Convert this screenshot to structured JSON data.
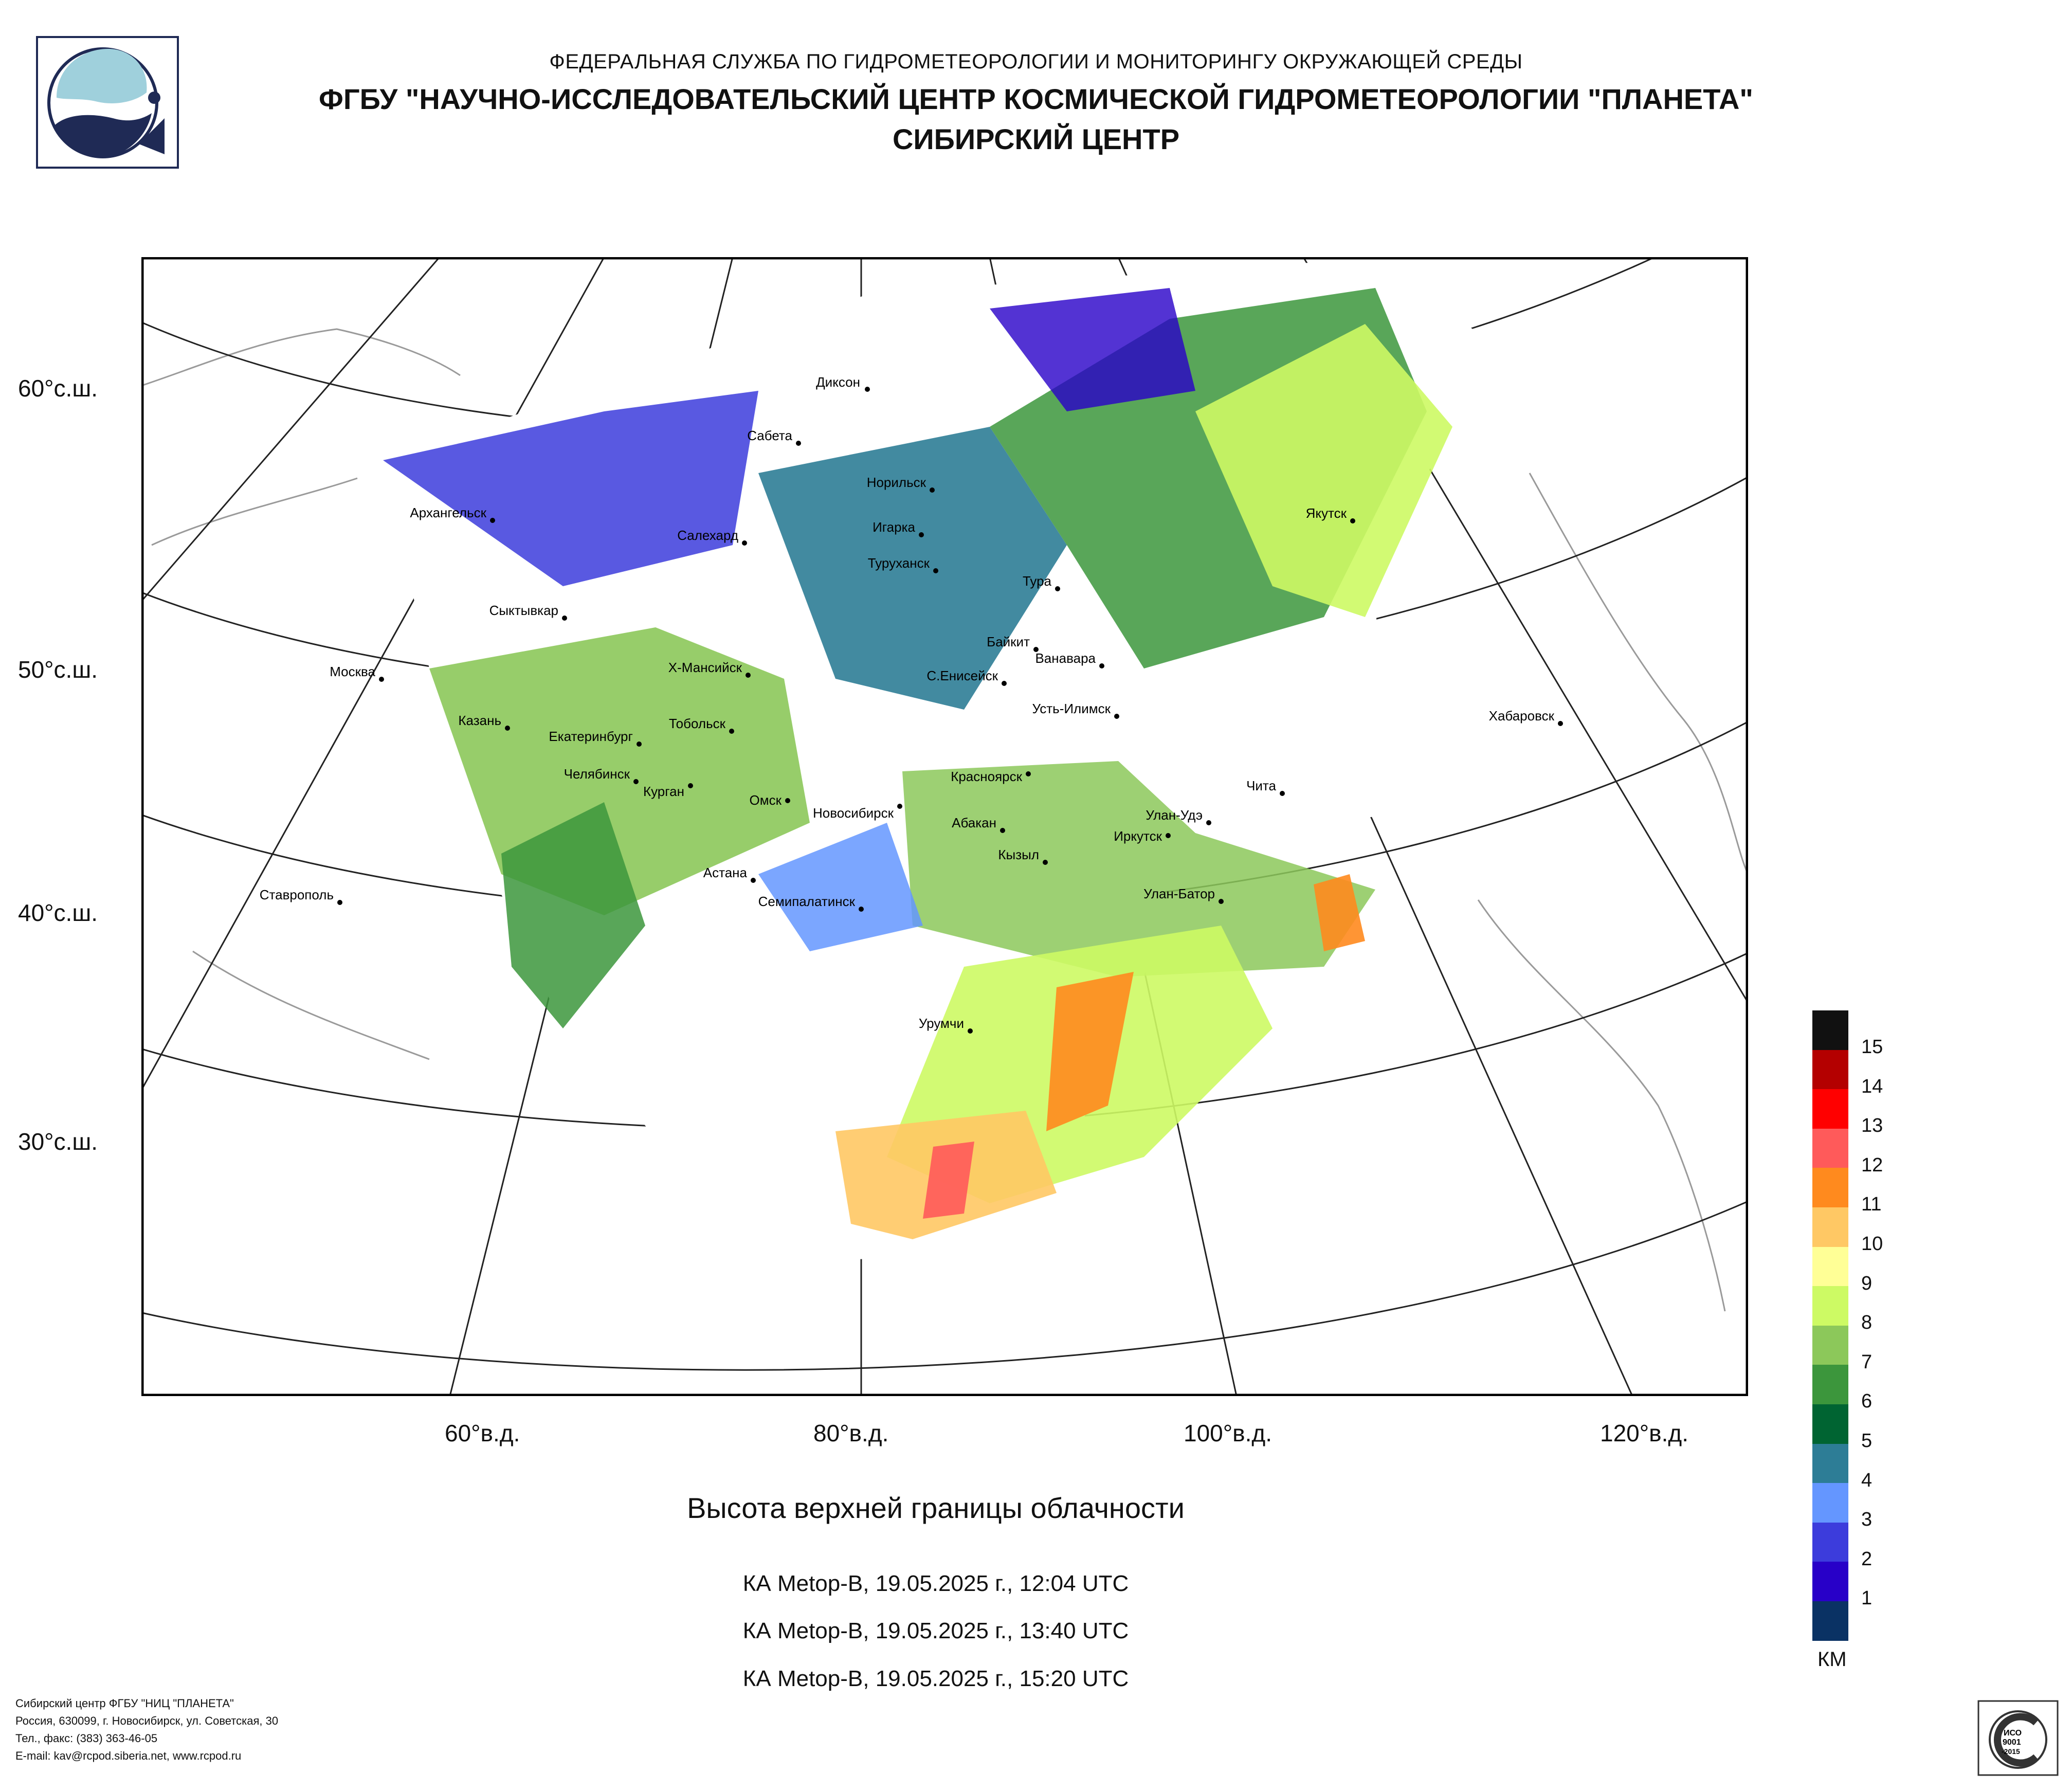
{
  "header": {
    "agency": "ФЕДЕРАЛЬНАЯ СЛУЖБА ПО ГИДРОМЕТЕОРОЛОГИИ И МОНИТОРИНГУ ОКРУЖАЮЩЕЙ СРЕДЫ",
    "institute": "ФГБУ \"НАУЧНО-ИССЛЕДОВАТЕЛЬСКИЙ ЦЕНТР КОСМИЧЕСКОЙ ГИДРОМЕТЕОРОЛОГИИ \"ПЛАНЕТА\"",
    "center": "СИБИРСКИЙ ЦЕНТР"
  },
  "map": {
    "lat_labels": [
      "60°с.ш.",
      "50°с.ш.",
      "40°с.ш.",
      "30°с.ш."
    ],
    "lon_labels": [
      "60°в.д.",
      "80°в.д.",
      "100°в.д.",
      "120°в.д."
    ],
    "cities": [
      "Диксон",
      "Сабета",
      "Норильск",
      "Игарка",
      "Туруханск",
      "Салехард",
      "Архангельск",
      "Сыктывкар",
      "Тура",
      "Якутск",
      "Байкит",
      "Ванавара",
      "Москва",
      "Х-Мансийск",
      "С.Енисейск",
      "Усть-Илимск",
      "Хабаровск",
      "Казань",
      "Екатеринбург",
      "Тобольск",
      "Челябинск",
      "Курган",
      "Омск",
      "Новосибирск",
      "Красноярск",
      "Чита",
      "Абакан",
      "Улан-Удэ",
      "Иркутск",
      "Кызыл",
      "Астана",
      "Ставрополь",
      "Семипалатинск",
      "Улан-Батор",
      "Урумчи"
    ]
  },
  "product_title": "Высота верхней границы облачности",
  "passes": [
    "КА Metop-B, 19.05.2025 г., 12:04 UTC",
    "КА Metop-B, 19.05.2025 г., 13:40 UTC",
    "КА Metop-B, 19.05.2025 г., 15:20 UTC"
  ],
  "legend": {
    "unit": "КМ",
    "values": [
      "15",
      "14",
      "13",
      "12",
      "11",
      "10",
      "9",
      "8",
      "7",
      "6",
      "5",
      "4",
      "3",
      "2",
      "1"
    ],
    "colors": [
      "#111111",
      "#b40000",
      "#ff0000",
      "#ff5a5a",
      "#ff8a1e",
      "#ffc864",
      "#ffff96",
      "#cdfa64",
      "#8cc85a",
      "#3c963c",
      "#006432",
      "#2d7d96",
      "#6496ff",
      "#3c3cdc",
      "#2800c8",
      "#0a3264"
    ]
  },
  "footer": {
    "line1": "Сибирский центр ФГБУ \"НИЦ \"ПЛАНЕТА\"",
    "line2": "Россия, 630099, г. Новосибирск, ул. Советская, 30",
    "line3": "Тел., факс: (383) 363-46-05",
    "line4": "E-mail: kav@rcpod.siberia.net, www.rcpod.ru"
  },
  "iso_badge": "ДОБРОСОВЕСТНЫЙ ИСО 9001-2015 ПОСТАВЩИК"
}
